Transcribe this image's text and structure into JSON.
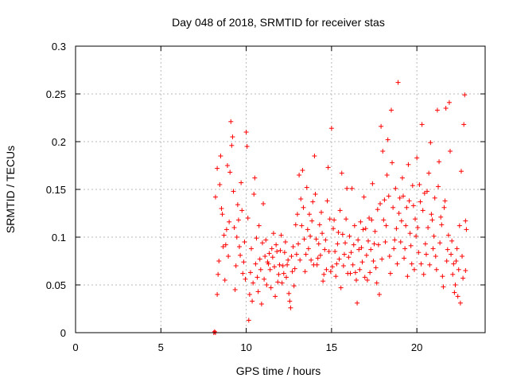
{
  "chart_data": {
    "type": "scatter",
    "title": "Day 048 of 2018, SRMTID for receiver stas",
    "xlabel": "GPS time / hours",
    "ylabel": "SRMTID / TECUs",
    "xlim": [
      0,
      24
    ],
    "ylim": [
      0,
      0.3
    ],
    "xticks": [
      0,
      5,
      10,
      15,
      20
    ],
    "xtick_labels": [
      "0",
      "5",
      "10",
      "15",
      "20"
    ],
    "yticks": [
      0,
      0.05,
      0.1,
      0.15,
      0.2,
      0.25,
      0.3
    ],
    "ytick_labels": [
      "0",
      "0.05",
      "0.1",
      "0.15",
      "0.2",
      "0.25",
      "0.3"
    ],
    "grid": true,
    "legend": "none",
    "marker": "+",
    "color": "#ff0000",
    "series": [
      {
        "points": [
          [
            8.1,
            0.0
          ],
          [
            8.15,
            0.001
          ],
          [
            8.2,
            0.0
          ],
          [
            8.2,
            0.142
          ],
          [
            8.3,
            0.172
          ],
          [
            8.4,
            0.075
          ],
          [
            8.5,
            0.185
          ],
          [
            8.6,
            0.124
          ],
          [
            8.7,
            0.102
          ],
          [
            8.8,
            0.092
          ],
          [
            8.9,
            0.175
          ],
          [
            9.0,
            0.116
          ],
          [
            8.3,
            0.04
          ],
          [
            8.35,
            0.061
          ],
          [
            8.45,
            0.155
          ],
          [
            8.55,
            0.13
          ],
          [
            8.65,
            0.09
          ],
          [
            8.75,
            0.055
          ],
          [
            8.85,
            0.108
          ],
          [
            8.95,
            0.08
          ],
          [
            9.1,
            0.221
          ],
          [
            9.15,
            0.196
          ],
          [
            9.2,
            0.205
          ],
          [
            9.25,
            0.148
          ],
          [
            9.3,
            0.11
          ],
          [
            9.4,
            0.07
          ],
          [
            9.5,
            0.134
          ],
          [
            9.6,
            0.09
          ],
          [
            9.7,
            0.157
          ],
          [
            9.8,
            0.062
          ],
          [
            9.9,
            0.095
          ],
          [
            9.05,
            0.168
          ],
          [
            9.35,
            0.045
          ],
          [
            9.45,
            0.1
          ],
          [
            9.55,
            0.118
          ],
          [
            9.65,
            0.081
          ],
          [
            9.75,
            0.128
          ],
          [
            9.85,
            0.074
          ],
          [
            9.95,
            0.056
          ],
          [
            10.0,
            0.21
          ],
          [
            10.05,
            0.195
          ],
          [
            10.1,
            0.12
          ],
          [
            10.2,
            0.04
          ],
          [
            10.15,
            0.013
          ],
          [
            10.25,
            0.063
          ],
          [
            10.3,
            0.088
          ],
          [
            10.4,
            0.052
          ],
          [
            10.5,
            0.162
          ],
          [
            10.6,
            0.099
          ],
          [
            10.7,
            0.043
          ],
          [
            10.8,
            0.077
          ],
          [
            10.9,
            0.03
          ],
          [
            10.35,
            0.033
          ],
          [
            10.45,
            0.145
          ],
          [
            10.55,
            0.072
          ],
          [
            10.65,
            0.058
          ],
          [
            10.75,
            0.112
          ],
          [
            10.85,
            0.066
          ],
          [
            10.95,
            0.094
          ],
          [
            11.0,
            0.135
          ],
          [
            11.1,
            0.08
          ],
          [
            11.2,
            0.05
          ],
          [
            11.3,
            0.072
          ],
          [
            11.4,
            0.066
          ],
          [
            11.5,
            0.088
          ],
          [
            11.6,
            0.104
          ],
          [
            11.7,
            0.038
          ],
          [
            11.8,
            0.085
          ],
          [
            11.9,
            0.061
          ],
          [
            11.05,
            0.056
          ],
          [
            11.15,
            0.097
          ],
          [
            11.25,
            0.074
          ],
          [
            11.35,
            0.083
          ],
          [
            11.45,
            0.047
          ],
          [
            11.55,
            0.079
          ],
          [
            11.65,
            0.069
          ],
          [
            11.75,
            0.092
          ],
          [
            11.85,
            0.053
          ],
          [
            11.95,
            0.071
          ],
          [
            12.0,
            0.086
          ],
          [
            12.1,
            0.052
          ],
          [
            12.2,
            0.062
          ],
          [
            12.3,
            0.095
          ],
          [
            12.4,
            0.071
          ],
          [
            12.5,
            0.041
          ],
          [
            12.6,
            0.026
          ],
          [
            12.7,
            0.064
          ],
          [
            12.8,
            0.049
          ],
          [
            12.9,
            0.113
          ],
          [
            12.05,
            0.102
          ],
          [
            12.15,
            0.07
          ],
          [
            12.25,
            0.084
          ],
          [
            12.35,
            0.058
          ],
          [
            12.45,
            0.076
          ],
          [
            12.55,
            0.033
          ],
          [
            12.65,
            0.08
          ],
          [
            12.75,
            0.09
          ],
          [
            12.85,
            0.067
          ],
          [
            12.95,
            0.082
          ],
          [
            13.0,
            0.124
          ],
          [
            13.1,
            0.165
          ],
          [
            13.2,
            0.14
          ],
          [
            13.3,
            0.17
          ],
          [
            13.4,
            0.098
          ],
          [
            13.5,
            0.082
          ],
          [
            13.6,
            0.108
          ],
          [
            13.7,
            0.124
          ],
          [
            13.8,
            0.076
          ],
          [
            13.9,
            0.137
          ],
          [
            13.05,
            0.093
          ],
          [
            13.15,
            0.076
          ],
          [
            13.25,
            0.112
          ],
          [
            13.35,
            0.131
          ],
          [
            13.45,
            0.064
          ],
          [
            13.55,
            0.152
          ],
          [
            13.65,
            0.088
          ],
          [
            13.75,
            0.101
          ],
          [
            13.85,
            0.117
          ],
          [
            13.95,
            0.071
          ],
          [
            14.0,
            0.185
          ],
          [
            14.1,
            0.098
          ],
          [
            14.2,
            0.078
          ],
          [
            14.3,
            0.113
          ],
          [
            14.4,
            0.126
          ],
          [
            14.5,
            0.054
          ],
          [
            14.6,
            0.087
          ],
          [
            14.7,
            0.066
          ],
          [
            14.8,
            0.173
          ],
          [
            14.9,
            0.119
          ],
          [
            14.05,
            0.145
          ],
          [
            14.15,
            0.071
          ],
          [
            14.25,
            0.093
          ],
          [
            14.35,
            0.081
          ],
          [
            14.45,
            0.104
          ],
          [
            14.55,
            0.061
          ],
          [
            14.65,
            0.097
          ],
          [
            14.75,
            0.138
          ],
          [
            14.85,
            0.085
          ],
          [
            14.95,
            0.064
          ],
          [
            15.0,
            0.214
          ],
          [
            15.1,
            0.109
          ],
          [
            15.2,
            0.085
          ],
          [
            15.3,
            0.072
          ],
          [
            15.4,
            0.105
          ],
          [
            15.5,
            0.128
          ],
          [
            15.6,
            0.167
          ],
          [
            15.7,
            0.07
          ],
          [
            15.8,
            0.094
          ],
          [
            15.9,
            0.151
          ],
          [
            15.05,
            0.069
          ],
          [
            15.15,
            0.118
          ],
          [
            15.25,
            0.059
          ],
          [
            15.35,
            0.093
          ],
          [
            15.45,
            0.077
          ],
          [
            15.55,
            0.047
          ],
          [
            15.65,
            0.103
          ],
          [
            15.75,
            0.082
          ],
          [
            15.85,
            0.119
          ],
          [
            15.95,
            0.062
          ],
          [
            16.0,
            0.079
          ],
          [
            16.1,
            0.062
          ],
          [
            16.2,
            0.151
          ],
          [
            16.3,
            0.092
          ],
          [
            16.4,
            0.063
          ],
          [
            16.5,
            0.031
          ],
          [
            16.6,
            0.087
          ],
          [
            16.7,
            0.116
          ],
          [
            16.8,
            0.074
          ],
          [
            16.9,
            0.142
          ],
          [
            16.05,
            0.101
          ],
          [
            16.15,
            0.084
          ],
          [
            16.25,
            0.071
          ],
          [
            16.35,
            0.112
          ],
          [
            16.45,
            0.055
          ],
          [
            16.55,
            0.097
          ],
          [
            16.65,
            0.066
          ],
          [
            16.75,
            0.089
          ],
          [
            16.85,
            0.108
          ],
          [
            16.95,
            0.058
          ],
          [
            17.0,
            0.109
          ],
          [
            17.1,
            0.055
          ],
          [
            17.2,
            0.12
          ],
          [
            17.3,
            0.087
          ],
          [
            17.4,
            0.156
          ],
          [
            17.5,
            0.093
          ],
          [
            17.6,
            0.068
          ],
          [
            17.7,
            0.129
          ],
          [
            17.8,
            0.04
          ],
          [
            17.9,
            0.216
          ],
          [
            17.05,
            0.081
          ],
          [
            17.15,
            0.096
          ],
          [
            17.25,
            0.063
          ],
          [
            17.35,
            0.118
          ],
          [
            17.45,
            0.075
          ],
          [
            17.55,
            0.106
          ],
          [
            17.65,
            0.052
          ],
          [
            17.75,
            0.092
          ],
          [
            17.85,
            0.135
          ],
          [
            17.95,
            0.077
          ],
          [
            18.0,
            0.19
          ],
          [
            18.1,
            0.139
          ],
          [
            18.2,
            0.112
          ],
          [
            18.3,
            0.202
          ],
          [
            18.4,
            0.08
          ],
          [
            18.5,
            0.233
          ],
          [
            18.6,
            0.131
          ],
          [
            18.7,
            0.097
          ],
          [
            18.8,
            0.109
          ],
          [
            18.9,
            0.262
          ],
          [
            18.05,
            0.118
          ],
          [
            18.15,
            0.095
          ],
          [
            18.25,
            0.165
          ],
          [
            18.35,
            0.143
          ],
          [
            18.45,
            0.062
          ],
          [
            18.55,
            0.178
          ],
          [
            18.65,
            0.088
          ],
          [
            18.75,
            0.151
          ],
          [
            18.85,
            0.072
          ],
          [
            18.95,
            0.125
          ],
          [
            19.0,
            0.141
          ],
          [
            19.1,
            0.117
          ],
          [
            19.2,
            0.143
          ],
          [
            19.3,
            0.088
          ],
          [
            19.4,
            0.131
          ],
          [
            19.5,
            0.176
          ],
          [
            19.6,
            0.104
          ],
          [
            19.7,
            0.072
          ],
          [
            19.8,
            0.133
          ],
          [
            19.9,
            0.119
          ],
          [
            19.05,
            0.095
          ],
          [
            19.15,
            0.162
          ],
          [
            19.25,
            0.078
          ],
          [
            19.35,
            0.112
          ],
          [
            19.45,
            0.059
          ],
          [
            19.55,
            0.138
          ],
          [
            19.65,
            0.091
          ],
          [
            19.75,
            0.154
          ],
          [
            19.85,
            0.066
          ],
          [
            19.95,
            0.101
          ],
          [
            20.0,
            0.183
          ],
          [
            20.1,
            0.084
          ],
          [
            20.2,
            0.137
          ],
          [
            20.3,
            0.218
          ],
          [
            20.4,
            0.061
          ],
          [
            20.5,
            0.093
          ],
          [
            20.6,
            0.148
          ],
          [
            20.7,
            0.167
          ],
          [
            20.8,
            0.199
          ],
          [
            20.9,
            0.118
          ],
          [
            20.05,
            0.11
          ],
          [
            20.15,
            0.155
          ],
          [
            20.25,
            0.072
          ],
          [
            20.35,
            0.128
          ],
          [
            20.45,
            0.146
          ],
          [
            20.55,
            0.082
          ],
          [
            20.65,
            0.11
          ],
          [
            20.75,
            0.071
          ],
          [
            20.85,
            0.124
          ],
          [
            20.95,
            0.088
          ],
          [
            21.0,
            0.101
          ],
          [
            21.1,
            0.08
          ],
          [
            21.2,
            0.233
          ],
          [
            21.3,
            0.179
          ],
          [
            21.4,
            0.121
          ],
          [
            21.5,
            0.059
          ],
          [
            21.6,
            0.131
          ],
          [
            21.7,
            0.235
          ],
          [
            21.8,
            0.087
          ],
          [
            21.9,
            0.241
          ],
          [
            21.05,
            0.141
          ],
          [
            21.15,
            0.066
          ],
          [
            21.25,
            0.153
          ],
          [
            21.35,
            0.094
          ],
          [
            21.45,
            0.113
          ],
          [
            21.55,
            0.048
          ],
          [
            21.65,
            0.138
          ],
          [
            21.75,
            0.075
          ],
          [
            21.85,
            0.102
          ],
          [
            21.95,
            0.19
          ],
          [
            22.0,
            0.082
          ],
          [
            22.1,
            0.061
          ],
          [
            22.2,
            0.042
          ],
          [
            22.3,
            0.075
          ],
          [
            22.4,
            0.038
          ],
          [
            22.5,
            0.112
          ],
          [
            22.6,
            0.169
          ],
          [
            22.7,
            0.057
          ],
          [
            22.8,
            0.249
          ],
          [
            22.85,
            0.117
          ],
          [
            22.05,
            0.096
          ],
          [
            22.15,
            0.072
          ],
          [
            22.25,
            0.05
          ],
          [
            22.35,
            0.088
          ],
          [
            22.45,
            0.066
          ],
          [
            22.55,
            0.031
          ],
          [
            22.65,
            0.08
          ],
          [
            22.75,
            0.218
          ],
          [
            22.85,
            0.065
          ],
          [
            22.9,
            0.108
          ]
        ]
      }
    ]
  }
}
